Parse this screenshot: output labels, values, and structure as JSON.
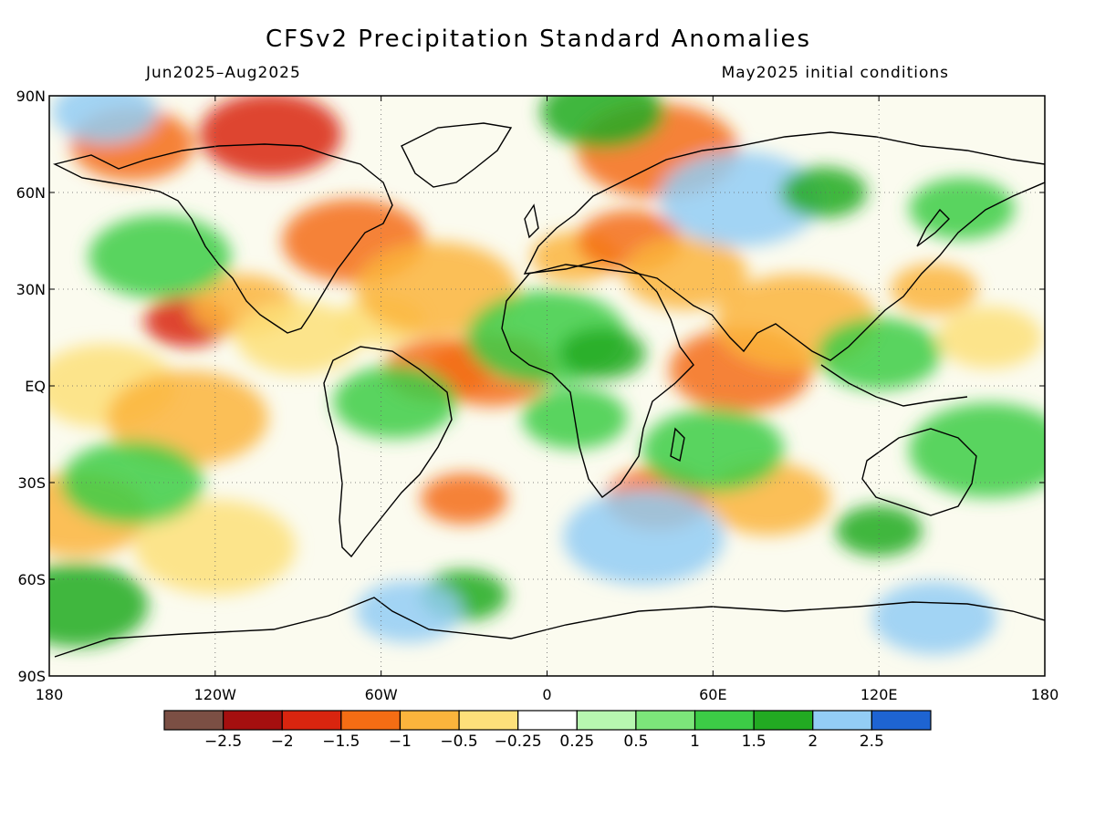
{
  "title": "CFSv2 Precipitation Standard Anomalies",
  "subtitle_left": "Jun2025–Aug2025",
  "subtitle_right": "May2025 initial conditions",
  "map": {
    "lon_range": [
      -180,
      180
    ],
    "lat_range": [
      -90,
      90
    ],
    "lat_ticks": [
      {
        "value": 90,
        "label": "90N"
      },
      {
        "value": 60,
        "label": "60N"
      },
      {
        "value": 30,
        "label": "30N"
      },
      {
        "value": 0,
        "label": "EQ"
      },
      {
        "value": -30,
        "label": "30S"
      },
      {
        "value": -60,
        "label": "60S"
      },
      {
        "value": -90,
        "label": "90S"
      }
    ],
    "lon_ticks": [
      {
        "value": -180,
        "label": "180"
      },
      {
        "value": -120,
        "label": "120W"
      },
      {
        "value": -60,
        "label": "60W"
      },
      {
        "value": 0,
        "label": "0"
      },
      {
        "value": 60,
        "label": "60E"
      },
      {
        "value": 120,
        "label": "120E"
      },
      {
        "value": 180,
        "label": "180"
      }
    ],
    "gridlines": "dotted"
  },
  "colorbar": {
    "colors": [
      "#7b4f44",
      "#a50f0f",
      "#d9250f",
      "#f46d14",
      "#fbb43c",
      "#fde07a",
      "#ffffff",
      "#b7f7b0",
      "#7ce67a",
      "#3ccc46",
      "#22aa22",
      "#93cdf5",
      "#1e64d2"
    ],
    "labels": [
      "−2.5",
      "−2",
      "−1.5",
      "−1",
      "−0.5",
      "−0.25",
      "0.25",
      "0.5",
      "1",
      "1.5",
      "2",
      "2.5"
    ]
  },
  "anomaly_fields": [
    {
      "lon": -130,
      "lat": 20,
      "value": -2.0
    },
    {
      "lon": -110,
      "lat": 25,
      "value": -1.0
    },
    {
      "lon": -90,
      "lat": 15,
      "value": -0.5
    },
    {
      "lon": -160,
      "lat": 0,
      "value": -0.5
    },
    {
      "lon": -130,
      "lat": -10,
      "value": -1.0
    },
    {
      "lon": -60,
      "lat": 20,
      "value": -0.5
    },
    {
      "lon": -40,
      "lat": 5,
      "value": -1.5
    },
    {
      "lon": -20,
      "lat": 5,
      "value": -1.5
    },
    {
      "lon": -70,
      "lat": 45,
      "value": -1.5
    },
    {
      "lon": -40,
      "lat": 30,
      "value": -1.0
    },
    {
      "lon": 10,
      "lat": 40,
      "value": -1.0
    },
    {
      "lon": 30,
      "lat": 45,
      "value": -1.5
    },
    {
      "lon": 50,
      "lat": 35,
      "value": -1.0
    },
    {
      "lon": 70,
      "lat": 5,
      "value": -1.5
    },
    {
      "lon": 90,
      "lat": 20,
      "value": -1.0
    },
    {
      "lon": 140,
      "lat": 30,
      "value": -1.0
    },
    {
      "lon": 160,
      "lat": 15,
      "value": -0.5
    },
    {
      "lon": -150,
      "lat": 75,
      "value": -1.5
    },
    {
      "lon": -100,
      "lat": 78,
      "value": -2.0
    },
    {
      "lon": 40,
      "lat": 73,
      "value": -1.5
    },
    {
      "lon": -30,
      "lat": -35,
      "value": -1.5
    },
    {
      "lon": 40,
      "lat": -35,
      "value": -1.5
    },
    {
      "lon": 80,
      "lat": -35,
      "value": -1.0
    },
    {
      "lon": -170,
      "lat": -40,
      "value": -1.0
    },
    {
      "lon": -120,
      "lat": -50,
      "value": -0.5
    },
    {
      "lon": -30,
      "lat": -65,
      "value": 1.5
    },
    {
      "lon": -50,
      "lat": -70,
      "value": 2.0
    },
    {
      "lon": 140,
      "lat": -72,
      "value": 2.0
    },
    {
      "lon": -170,
      "lat": -68,
      "value": 1.5
    },
    {
      "lon": 0,
      "lat": 15,
      "value": 1.0
    },
    {
      "lon": 20,
      "lat": 10,
      "value": 1.5
    },
    {
      "lon": 10,
      "lat": -10,
      "value": 1.0
    },
    {
      "lon": -55,
      "lat": -5,
      "value": 1.0
    },
    {
      "lon": -140,
      "lat": 40,
      "value": 1.0
    },
    {
      "lon": 70,
      "lat": 58,
      "value": 2.0
    },
    {
      "lon": 100,
      "lat": 60,
      "value": 1.5
    },
    {
      "lon": 150,
      "lat": 55,
      "value": 1.0
    },
    {
      "lon": 120,
      "lat": 10,
      "value": 1.0
    },
    {
      "lon": 60,
      "lat": -20,
      "value": 1.0
    },
    {
      "lon": 35,
      "lat": -47,
      "value": 2.0
    },
    {
      "lon": 120,
      "lat": -45,
      "value": 1.5
    },
    {
      "lon": -160,
      "lat": 85,
      "value": 2.0
    },
    {
      "lon": 20,
      "lat": 85,
      "value": 1.5
    },
    {
      "lon": -150,
      "lat": -30,
      "value": 1.0
    },
    {
      "lon": 160,
      "lat": -20,
      "value": 1.0
    }
  ]
}
